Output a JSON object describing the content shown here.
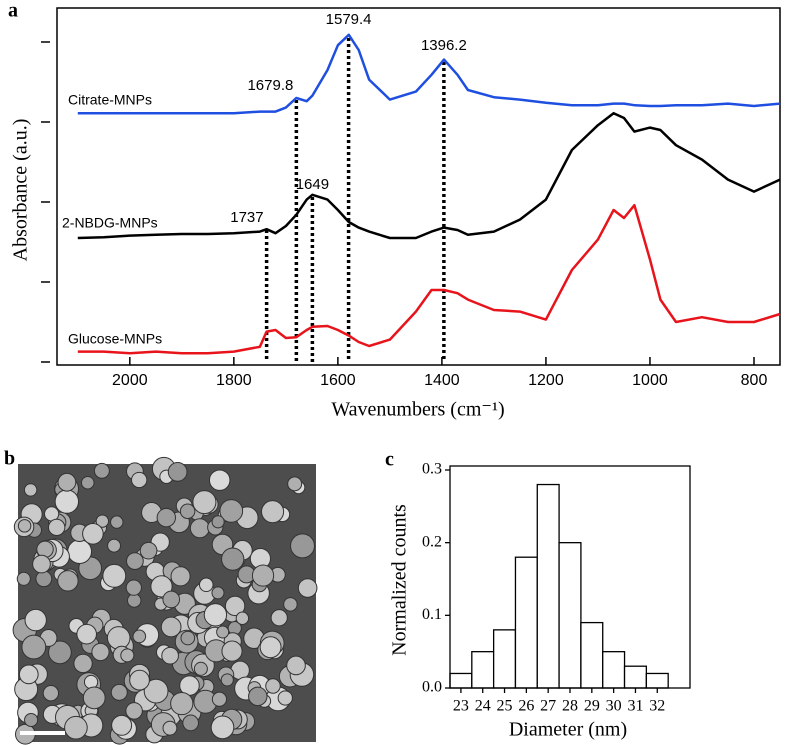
{
  "panel_labels": [
    "a",
    "b",
    "c"
  ],
  "chart_data": [
    {
      "type": "line",
      "x_label": "Wavenumbers (cm⁻¹)",
      "y_label": "Absorbance (a.u.)",
      "x": [
        2100,
        2050,
        2000,
        1950,
        1900,
        1850,
        1800,
        1750,
        1737,
        1720,
        1700,
        1680,
        1660,
        1649,
        1620,
        1600,
        1579,
        1560,
        1540,
        1500,
        1450,
        1420,
        1396,
        1370,
        1350,
        1300,
        1250,
        1200,
        1150,
        1100,
        1070,
        1050,
        1030,
        1000,
        980,
        950,
        900,
        850,
        800,
        750
      ],
      "xlim": [
        2140,
        750
      ],
      "xticks": [
        2000,
        1800,
        1600,
        1400,
        1200,
        1000,
        800
      ],
      "ylim": [
        0,
        4.4
      ],
      "yticks": [
        0,
        1,
        2,
        3,
        4
      ],
      "series": [
        {
          "name": "Citrate-MNPs",
          "color": "#1f4fe0",
          "values": [
            3.11,
            3.11,
            3.11,
            3.11,
            3.11,
            3.11,
            3.11,
            3.13,
            3.13,
            3.13,
            3.18,
            3.3,
            3.26,
            3.33,
            3.65,
            3.96,
            4.09,
            3.9,
            3.53,
            3.28,
            3.38,
            3.59,
            3.78,
            3.59,
            3.4,
            3.31,
            3.28,
            3.24,
            3.21,
            3.21,
            3.23,
            3.23,
            3.21,
            3.2,
            3.2,
            3.21,
            3.21,
            3.23,
            3.2,
            3.23
          ]
        },
        {
          "name": "2-NBDG-MNPs",
          "color": "#000000",
          "values": [
            1.55,
            1.56,
            1.58,
            1.59,
            1.6,
            1.6,
            1.61,
            1.63,
            1.66,
            1.61,
            1.7,
            1.84,
            2.03,
            2.09,
            2.03,
            1.9,
            1.75,
            1.68,
            1.63,
            1.55,
            1.55,
            1.63,
            1.68,
            1.65,
            1.59,
            1.63,
            1.78,
            2.03,
            2.65,
            2.96,
            3.11,
            3.05,
            2.88,
            2.93,
            2.9,
            2.71,
            2.53,
            2.28,
            2.13,
            2.28
          ]
        },
        {
          "name": "Glucose-MNPs",
          "color": "#e8141c",
          "values": [
            0.13,
            0.13,
            0.11,
            0.13,
            0.11,
            0.11,
            0.13,
            0.19,
            0.38,
            0.4,
            0.3,
            0.31,
            0.4,
            0.44,
            0.45,
            0.4,
            0.33,
            0.25,
            0.2,
            0.28,
            0.63,
            0.9,
            0.9,
            0.86,
            0.78,
            0.65,
            0.63,
            0.53,
            1.15,
            1.53,
            1.9,
            1.8,
            1.96,
            1.28,
            0.78,
            0.5,
            0.56,
            0.5,
            0.5,
            0.6
          ]
        }
      ],
      "peaks": [
        1737,
        1679.8,
        1649,
        1579.4,
        1396.2
      ]
    },
    {
      "type": "histogram",
      "x_label": "Diameter (nm)",
      "y_label": "Normalized counts",
      "bins": [
        22.5,
        23.5,
        24.5,
        25.5,
        26.5,
        27.5,
        28.5,
        29.5,
        30.5,
        31.5,
        32.5
      ],
      "values": [
        0.02,
        0.05,
        0.08,
        0.18,
        0.28,
        0.2,
        0.09,
        0.05,
        0.03,
        0.02
      ],
      "color": "#ffffff",
      "xlim": [
        22.5,
        33.5
      ],
      "xticks": [
        23,
        24,
        25,
        26,
        27,
        28,
        29,
        30,
        31,
        32
      ],
      "ylim": [
        0,
        0.3
      ],
      "yticks": [
        {
          "value": 0,
          "label": "0.0"
        },
        0.1,
        0.2,
        0.3
      ]
    }
  ]
}
